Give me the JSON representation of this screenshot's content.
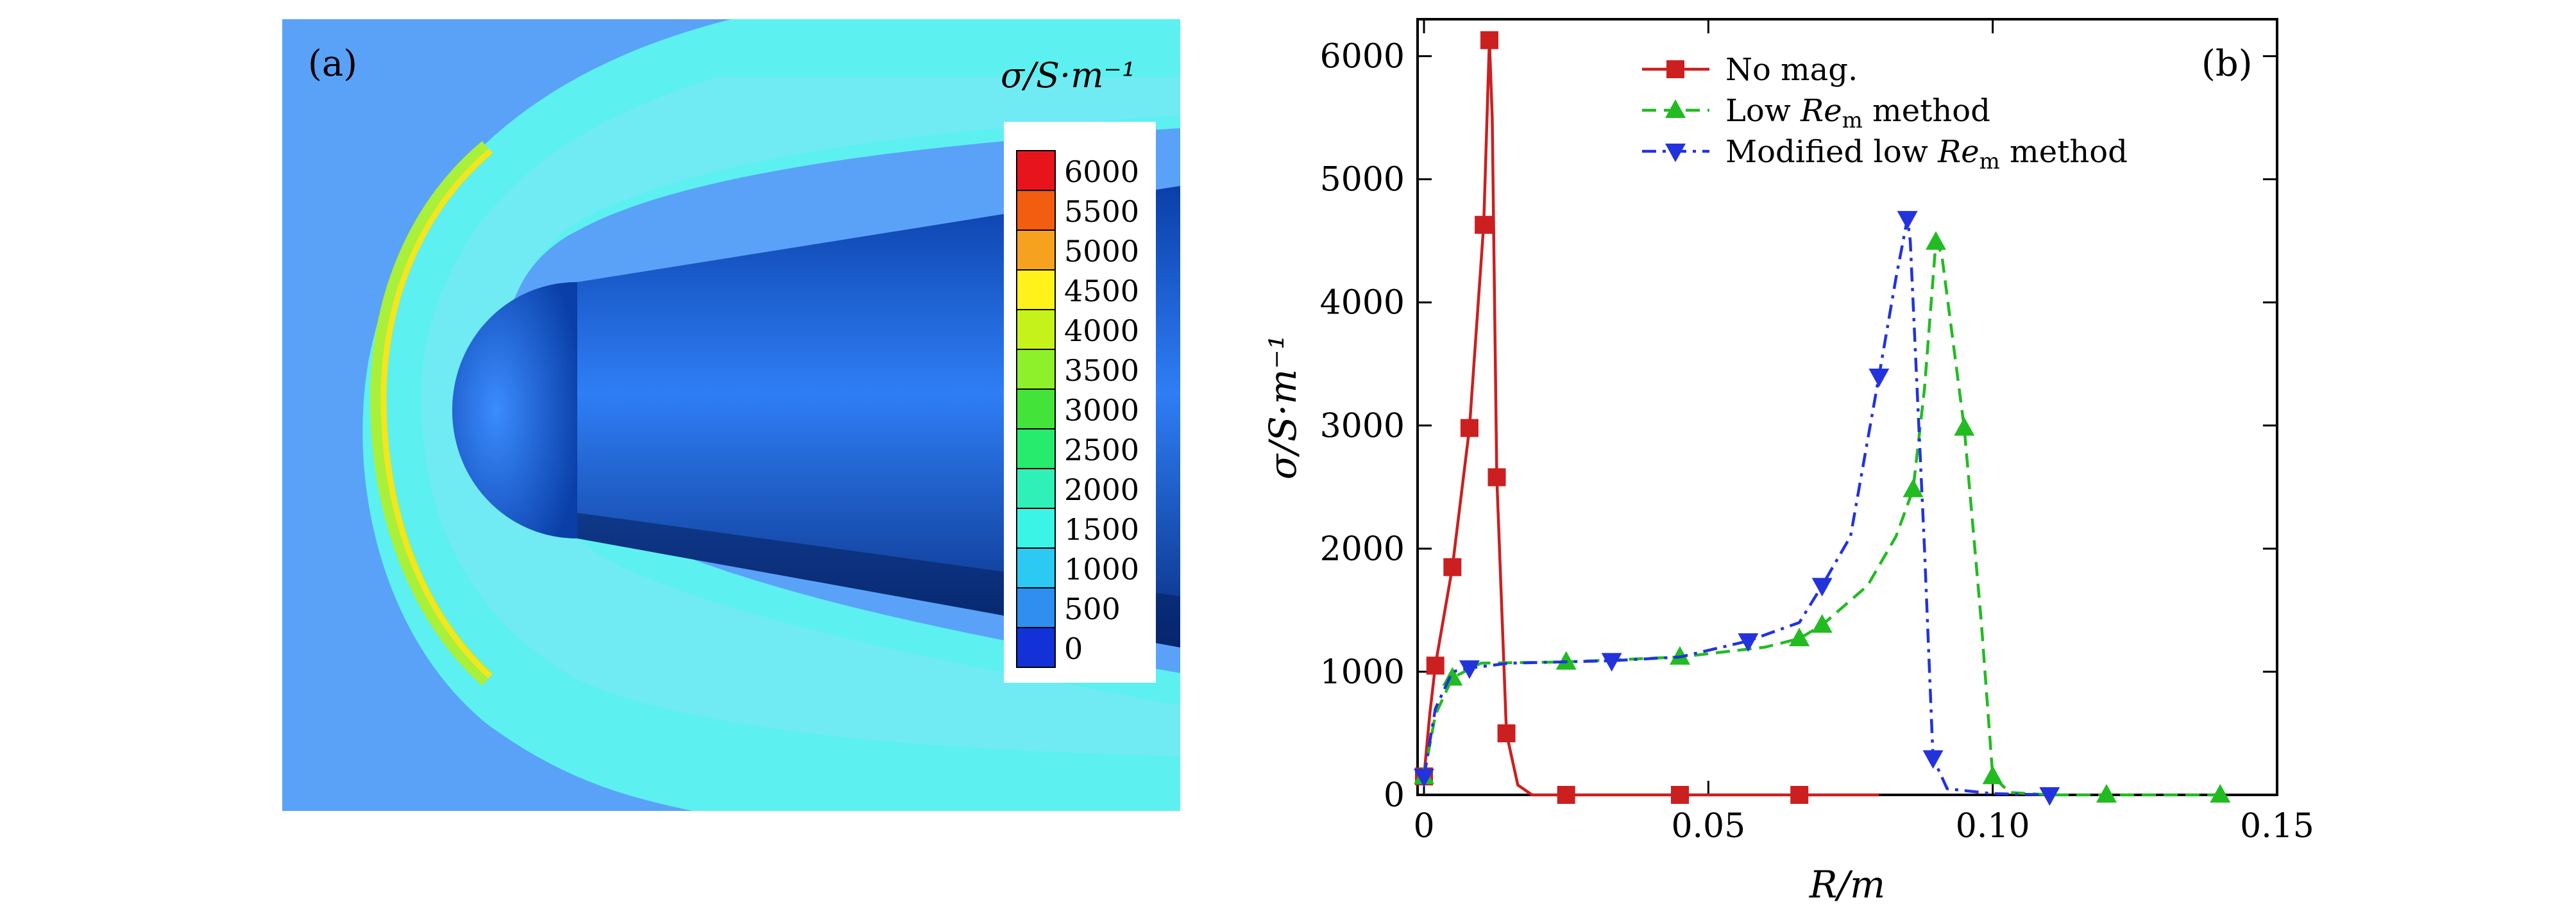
{
  "panel_a": {
    "label": "(a)",
    "colorbar_title": "σ/S·m⁻¹",
    "colorbar_levels": [
      {
        "value": "6000",
        "color": "#e8141c"
      },
      {
        "value": "5500",
        "color": "#f25d10"
      },
      {
        "value": "5000",
        "color": "#f7a21e"
      },
      {
        "value": "4500",
        "color": "#fff21a"
      },
      {
        "value": "4000",
        "color": "#c4f21a"
      },
      {
        "value": "3500",
        "color": "#8ef02a"
      },
      {
        "value": "3000",
        "color": "#43e33a"
      },
      {
        "value": "2500",
        "color": "#26eb6c"
      },
      {
        "value": "2000",
        "color": "#2ff0b6"
      },
      {
        "value": "1500",
        "color": "#3af5e6"
      },
      {
        "value": "1000",
        "color": "#2cc9f2"
      },
      {
        "value": "500",
        "color": "#2e8ff0"
      },
      {
        "value": "0",
        "color": "#1232d8"
      }
    ],
    "colors": {
      "background": "#5aa2f7",
      "shock_layer": "#5df0f0",
      "body_dark": "#0a3fa8",
      "body_light": "#2f7ef5"
    }
  },
  "chart_data": {
    "type": "line",
    "panel_label": "(b)",
    "xlabel": "R/m",
    "ylabel": "σ/S·m⁻¹",
    "xlim": [
      0,
      0.15
    ],
    "ylim": [
      0,
      6300
    ],
    "x_ticks": [
      0,
      0.05,
      0.1,
      0.15
    ],
    "x_tick_labels": [
      "0",
      "0.05",
      "0.10",
      "0.15"
    ],
    "y_ticks": [
      0,
      1000,
      2000,
      3000,
      4000,
      5000,
      6000
    ],
    "y_tick_labels": [
      "0",
      "1000",
      "2000",
      "3000",
      "4000",
      "5000",
      "6000"
    ],
    "legend_position": "top-center",
    "series": [
      {
        "name": "No mag.",
        "legend_main": "No mag.",
        "legend_sub": "",
        "legend_tail": "",
        "color": "#cc1f1f",
        "dash": "solid",
        "marker": "square",
        "curve": [
          [
            0,
            150
          ],
          [
            0.001,
            650
          ],
          [
            0.002,
            1050
          ],
          [
            0.005,
            1850
          ],
          [
            0.008,
            2980
          ],
          [
            0.0105,
            4630
          ],
          [
            0.0115,
            6130
          ],
          [
            0.012,
            5500
          ],
          [
            0.0128,
            2580
          ],
          [
            0.0145,
            500
          ],
          [
            0.0165,
            80
          ],
          [
            0.019,
            0
          ],
          [
            0.025,
            0
          ],
          [
            0.045,
            0
          ],
          [
            0.066,
            0
          ],
          [
            0.08,
            0
          ]
        ],
        "markers": [
          [
            0,
            150
          ],
          [
            0.002,
            1050
          ],
          [
            0.005,
            1850
          ],
          [
            0.008,
            2980
          ],
          [
            0.0105,
            4630
          ],
          [
            0.0115,
            6130
          ],
          [
            0.0128,
            2580
          ],
          [
            0.0145,
            500
          ],
          [
            0.025,
            0
          ],
          [
            0.045,
            0
          ],
          [
            0.066,
            0
          ]
        ]
      },
      {
        "name": "Low Re_m method",
        "legend_main": "Low ",
        "legend_sub": "m",
        "legend_tail": " method",
        "color": "#22bb22",
        "dash": "dashed",
        "marker": "triangle-up",
        "curve": [
          [
            0,
            150
          ],
          [
            0.002,
            650
          ],
          [
            0.005,
            950
          ],
          [
            0.01,
            1070
          ],
          [
            0.025,
            1080
          ],
          [
            0.045,
            1120
          ],
          [
            0.06,
            1200
          ],
          [
            0.066,
            1270
          ],
          [
            0.07,
            1380
          ],
          [
            0.078,
            1700
          ],
          [
            0.083,
            2100
          ],
          [
            0.086,
            2480
          ],
          [
            0.088,
            3300
          ],
          [
            0.09,
            4490
          ],
          [
            0.091,
            4400
          ],
          [
            0.095,
            2980
          ],
          [
            0.098,
            1400
          ],
          [
            0.1,
            150
          ],
          [
            0.103,
            20
          ],
          [
            0.11,
            0
          ],
          [
            0.12,
            0
          ],
          [
            0.14,
            0
          ]
        ],
        "markers": [
          [
            0,
            150
          ],
          [
            0.005,
            950
          ],
          [
            0.025,
            1080
          ],
          [
            0.045,
            1120
          ],
          [
            0.066,
            1270
          ],
          [
            0.07,
            1380
          ],
          [
            0.086,
            2480
          ],
          [
            0.09,
            4490
          ],
          [
            0.095,
            2980
          ],
          [
            0.1,
            150
          ],
          [
            0.12,
            0
          ],
          [
            0.14,
            0
          ]
        ]
      },
      {
        "name": "Modified low Re_m method",
        "legend_main": "Modified low ",
        "legend_sub": "m",
        "legend_tail": " method",
        "color": "#2233dd",
        "dash": "dashdot",
        "marker": "triangle-down",
        "curve": [
          [
            0,
            150
          ],
          [
            0.002,
            700
          ],
          [
            0.005,
            1000
          ],
          [
            0.008,
            1030
          ],
          [
            0.015,
            1070
          ],
          [
            0.033,
            1090
          ],
          [
            0.045,
            1120
          ],
          [
            0.057,
            1250
          ],
          [
            0.066,
            1400
          ],
          [
            0.07,
            1700
          ],
          [
            0.075,
            2100
          ],
          [
            0.08,
            3400
          ],
          [
            0.083,
            4200
          ],
          [
            0.085,
            4680
          ],
          [
            0.0855,
            4500
          ],
          [
            0.088,
            2000
          ],
          [
            0.0895,
            300
          ],
          [
            0.092,
            50
          ],
          [
            0.1,
            10
          ],
          [
            0.11,
            0
          ]
        ],
        "markers": [
          [
            0,
            150
          ],
          [
            0.008,
            1030
          ],
          [
            0.033,
            1090
          ],
          [
            0.057,
            1250
          ],
          [
            0.07,
            1700
          ],
          [
            0.08,
            3400
          ],
          [
            0.085,
            4680
          ],
          [
            0.0895,
            300
          ],
          [
            0.11,
            0
          ]
        ]
      }
    ]
  }
}
